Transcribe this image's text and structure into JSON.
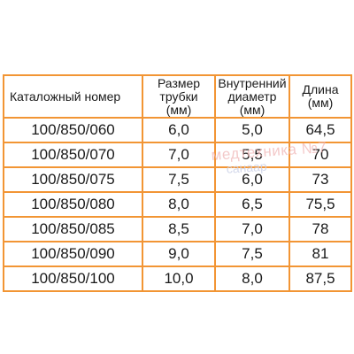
{
  "table": {
    "headers": [
      "Каталожный номер",
      "Размер\nтрубки\n(мм)",
      "Внутренний\nдиаметр\n(мм)",
      "Длина\n(мм)"
    ],
    "rows": [
      [
        "100/850/060",
        "6,0",
        "5,0",
        "64,5"
      ],
      [
        "100/850/070",
        "7,0",
        "5,5",
        "70"
      ],
      [
        "100/850/075",
        "7,5",
        "6,0",
        "73"
      ],
      [
        "100/850/080",
        "8,0",
        "6,5",
        "75,5"
      ],
      [
        "100/850/085",
        "8,5",
        "7,0",
        "78"
      ],
      [
        "100/850/090",
        "9,0",
        "7,5",
        "81"
      ],
      [
        "100/850/100",
        "10,0",
        "8,0",
        "87,5"
      ]
    ]
  },
  "watermark": {
    "line1": "медтехника №7",
    "line2": "санаар"
  },
  "colors": {
    "border": "#f29534",
    "text": "#1a1a1a"
  }
}
